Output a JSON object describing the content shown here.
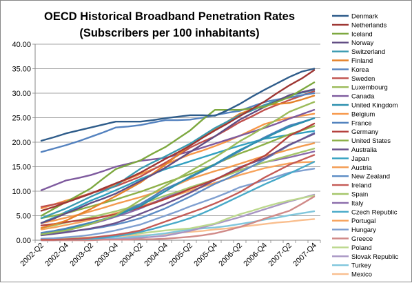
{
  "chart_data": {
    "type": "line",
    "title": "OECD Historical Broadband Penetration Rates",
    "subtitle": "(Subscribers per 100 inhabitants)",
    "xlabel": "",
    "ylabel": "",
    "ylim": [
      0,
      40
    ],
    "ytick_step": 5,
    "ytick_labels": [
      "0.00",
      "5.00",
      "10.00",
      "15.00",
      "20.00",
      "25.00",
      "30.00",
      "35.00",
      "40.00"
    ],
    "x": [
      "2002-Q2",
      "2002-Q3",
      "2002-Q4",
      "2003-Q1",
      "2003-Q2",
      "2003-Q3",
      "2003-Q4",
      "2004-Q1",
      "2004-Q2",
      "2004-Q3",
      "2004-Q4",
      "2005-Q1",
      "2005-Q2",
      "2005-Q3",
      "2005-Q4",
      "2006-Q1",
      "2006-Q2",
      "2006-Q3",
      "2006-Q4",
      "2007-Q1",
      "2007-Q2",
      "2007-Q3",
      "2007-Q4"
    ],
    "xtick_labels": [
      "2002-Q2",
      "2002-Q4",
      "2003-Q2",
      "2003-Q4",
      "2004-Q2",
      "2004-Q4",
      "2005-Q2",
      "2005-Q4",
      "2006-Q2",
      "2006-Q4",
      "2007-Q2",
      "2007-Q4"
    ],
    "grid": true,
    "legend_position": "right",
    "series": [
      {
        "name": "Denmark",
        "color": "#2E5C8A",
        "values": [
          20.3,
          21.0,
          21.8,
          22.4,
          23.0,
          23.6,
          24.2,
          24.2,
          24.2,
          24.5,
          24.9,
          25.2,
          25.5,
          25.5,
          25.4,
          26.5,
          27.8,
          29.3,
          30.7,
          32.0,
          33.3,
          34.4,
          35.0
        ]
      },
      {
        "name": "Netherlands",
        "color": "#9E3633",
        "values": [
          6.0,
          6.8,
          7.7,
          8.6,
          9.5,
          10.6,
          11.6,
          12.6,
          13.8,
          15.2,
          16.6,
          17.9,
          19.3,
          20.9,
          22.4,
          23.8,
          25.3,
          26.8,
          28.3,
          30.0,
          31.6,
          33.0,
          34.7
        ]
      },
      {
        "name": "Iceland",
        "color": "#7DA83F",
        "values": [
          5.0,
          6.4,
          7.8,
          9.2,
          10.6,
          12.6,
          14.5,
          15.4,
          16.3,
          17.7,
          19.0,
          20.7,
          22.4,
          24.6,
          26.6,
          26.6,
          26.6,
          26.9,
          27.2,
          28.2,
          29.2,
          30.7,
          32.2
        ]
      },
      {
        "name": "Norway",
        "color": "#614C83",
        "values": [
          3.5,
          4.4,
          5.5,
          6.5,
          7.6,
          8.5,
          9.5,
          10.8,
          12.1,
          13.4,
          14.8,
          16.4,
          18.0,
          19.6,
          21.2,
          22.9,
          24.6,
          25.9,
          27.2,
          28.4,
          29.6,
          30.2,
          30.8
        ]
      },
      {
        "name": "Switzerland",
        "color": "#3A9AB0",
        "values": [
          4.5,
          5.5,
          6.5,
          7.7,
          8.9,
          10.0,
          11.1,
          12.9,
          14.6,
          15.9,
          17.1,
          18.4,
          19.7,
          21.3,
          22.9,
          24.2,
          25.5,
          26.5,
          27.6,
          28.5,
          29.5,
          30.1,
          30.7
        ]
      },
      {
        "name": "Finland",
        "color": "#E5822A",
        "values": [
          2.5,
          3.2,
          4.0,
          5.2,
          6.4,
          7.7,
          9.0,
          10.4,
          11.8,
          13.6,
          15.4,
          17.4,
          19.4,
          21.0,
          22.6,
          24.2,
          25.8,
          26.7,
          27.6,
          27.8,
          28.0,
          28.7,
          29.5
        ]
      },
      {
        "name": "Korea",
        "color": "#5482BF",
        "values": [
          18.0,
          18.7,
          19.4,
          20.2,
          21.1,
          22.0,
          23.0,
          23.2,
          23.5,
          24.0,
          24.5,
          24.5,
          24.6,
          25.0,
          25.5,
          26.0,
          26.4,
          27.3,
          28.2,
          28.7,
          29.1,
          29.6,
          30.0
        ]
      },
      {
        "name": "Sweden",
        "color": "#C0504D",
        "values": [
          6.8,
          7.3,
          7.8,
          8.7,
          9.6,
          10.3,
          11.0,
          12.0,
          13.0,
          14.4,
          15.8,
          17.3,
          18.9,
          20.1,
          21.2,
          22.6,
          24.1,
          25.3,
          26.6,
          27.6,
          28.6,
          29.5,
          30.4
        ]
      },
      {
        "name": "Luxembourg",
        "color": "#9BBB59",
        "values": [
          1.2,
          1.6,
          2.0,
          2.6,
          3.3,
          4.2,
          5.1,
          6.6,
          8.2,
          9.6,
          11.1,
          12.6,
          14.1,
          15.5,
          16.9,
          18.5,
          20.2,
          21.6,
          23.1,
          24.6,
          26.2,
          27.2,
          28.2
        ]
      },
      {
        "name": "Canada",
        "color": "#7E5A9E",
        "values": [
          10.2,
          11.2,
          12.2,
          12.7,
          13.3,
          14.1,
          15.0,
          15.6,
          16.2,
          16.5,
          16.8,
          17.5,
          18.1,
          18.9,
          19.7,
          20.5,
          21.3,
          22.1,
          22.9,
          23.8,
          24.8,
          25.7,
          26.6
        ]
      },
      {
        "name": "United Kingdom",
        "color": "#2C8FAE",
        "values": [
          1.2,
          1.6,
          2.1,
          2.8,
          3.4,
          4.2,
          5.0,
          6.0,
          7.0,
          8.5,
          10.0,
          11.5,
          13.0,
          14.2,
          15.5,
          17.0,
          18.4,
          19.6,
          20.8,
          22.0,
          23.1,
          24.0,
          24.9
        ]
      },
      {
        "name": "Belgium",
        "color": "#F79646",
        "values": [
          6.5,
          7.3,
          8.1,
          8.8,
          9.6,
          10.5,
          11.4,
          12.5,
          13.5,
          14.5,
          15.5,
          16.5,
          17.5,
          18.3,
          19.2,
          20.2,
          21.3,
          22.5,
          23.7,
          24.4,
          25.0,
          25.4,
          25.8
        ]
      },
      {
        "name": "France",
        "color": "#4F81BD",
        "values": [
          1.5,
          1.9,
          2.4,
          3.0,
          3.6,
          4.3,
          5.0,
          6.2,
          7.4,
          8.9,
          10.5,
          11.6,
          12.8,
          14.1,
          15.4,
          16.8,
          18.2,
          19.6,
          21.0,
          22.2,
          23.4,
          24.1,
          24.9
        ]
      },
      {
        "name": "Germany",
        "color": "#B4413E",
        "values": [
          3.0,
          3.3,
          3.7,
          4.0,
          4.4,
          4.8,
          5.3,
          6.0,
          6.7,
          7.5,
          8.4,
          9.4,
          10.5,
          11.4,
          12.4,
          13.5,
          14.7,
          15.9,
          17.2,
          19.2,
          21.3,
          22.5,
          23.8
        ]
      },
      {
        "name": "United States",
        "color": "#8DB048",
        "values": [
          4.5,
          5.0,
          5.5,
          6.2,
          6.9,
          7.6,
          8.3,
          9.1,
          9.9,
          10.8,
          11.7,
          12.6,
          13.5,
          14.5,
          15.5,
          16.6,
          17.7,
          18.6,
          19.6,
          20.6,
          21.6,
          22.4,
          23.3
        ]
      },
      {
        "name": "Australia",
        "color": "#6B528C",
        "values": [
          1.0,
          1.3,
          1.6,
          2.0,
          2.4,
          2.9,
          3.5,
          4.4,
          5.4,
          6.4,
          7.4,
          8.5,
          9.7,
          11.0,
          12.3,
          13.6,
          14.9,
          15.8,
          16.7,
          18.1,
          19.5,
          20.6,
          21.7
        ]
      },
      {
        "name": "Japan",
        "color": "#31A0C0",
        "values": [
          3.5,
          4.6,
          5.8,
          6.9,
          8.1,
          9.1,
          10.2,
          11.3,
          12.5,
          13.5,
          14.5,
          15.3,
          16.1,
          16.9,
          17.7,
          18.5,
          19.3,
          20.0,
          20.7,
          21.1,
          21.5,
          21.9,
          22.3
        ]
      },
      {
        "name": "Austria",
        "color": "#F39A4E",
        "values": [
          3.5,
          4.0,
          4.6,
          5.2,
          5.9,
          6.6,
          7.4,
          8.1,
          8.8,
          9.6,
          10.4,
          11.4,
          12.5,
          13.3,
          14.1,
          14.8,
          15.6,
          16.4,
          17.2,
          17.8,
          18.5,
          19.2,
          19.8
        ]
      },
      {
        "name": "New Zealand",
        "color": "#5C8CC5",
        "values": [
          1.3,
          1.5,
          1.7,
          2.0,
          2.3,
          2.7,
          3.2,
          3.8,
          4.5,
          5.5,
          6.5,
          7.7,
          8.9,
          10.2,
          11.5,
          12.6,
          13.8,
          15.1,
          16.5,
          17.9,
          19.4,
          20.6,
          21.9
        ]
      },
      {
        "name": "Ireland",
        "color": "#C45A55",
        "values": [
          0.1,
          0.1,
          0.2,
          0.3,
          0.5,
          0.8,
          1.1,
          1.5,
          2.0,
          2.9,
          3.8,
          4.7,
          5.6,
          6.5,
          7.5,
          8.6,
          9.8,
          11.3,
          12.8,
          14.1,
          15.4,
          16.4,
          17.4
        ]
      },
      {
        "name": "Spain",
        "color": "#A5C66A",
        "values": [
          2.5,
          3.0,
          3.6,
          4.1,
          4.7,
          5.3,
          5.9,
          6.6,
          7.4,
          8.2,
          9.1,
          9.9,
          10.8,
          11.6,
          12.4,
          13.3,
          14.2,
          15.1,
          15.9,
          16.6,
          17.3,
          18.0,
          18.7
        ]
      },
      {
        "name": "Italy",
        "color": "#8A6BAA",
        "values": [
          1.0,
          1.5,
          2.0,
          2.6,
          3.3,
          4.0,
          4.8,
          5.6,
          6.5,
          7.6,
          8.7,
          9.6,
          10.6,
          11.5,
          12.4,
          13.3,
          14.3,
          15.1,
          15.9,
          16.4,
          16.9,
          17.5,
          18.1
        ]
      },
      {
        "name": "Czech Republic",
        "color": "#47A9C8",
        "values": [
          0.1,
          0.1,
          0.2,
          0.2,
          0.3,
          0.5,
          0.8,
          1.2,
          1.7,
          2.3,
          3.0,
          3.7,
          4.5,
          5.5,
          6.6,
          7.8,
          9.0,
          10.2,
          11.4,
          12.5,
          13.6,
          14.8,
          16.0
        ]
      },
      {
        "name": "Portugal",
        "color": "#F7A35C",
        "values": [
          2.2,
          2.6,
          3.1,
          3.6,
          4.2,
          4.8,
          5.5,
          6.2,
          6.9,
          7.7,
          8.5,
          9.3,
          10.1,
          10.9,
          11.7,
          12.5,
          13.3,
          14.0,
          14.7,
          15.2,
          15.7,
          15.9,
          16.0
        ]
      },
      {
        "name": "Hungary",
        "color": "#7F9FD0",
        "values": [
          0.3,
          0.4,
          0.6,
          0.8,
          1.1,
          1.5,
          2.0,
          2.6,
          3.2,
          4.1,
          5.0,
          5.9,
          6.9,
          7.8,
          8.7,
          9.7,
          10.8,
          11.5,
          12.2,
          13.0,
          13.8,
          14.2,
          14.6
        ]
      },
      {
        "name": "Greece",
        "color": "#D08A88",
        "values": [
          0.0,
          0.0,
          0.0,
          0.0,
          0.0,
          0.1,
          0.1,
          0.1,
          0.2,
          0.2,
          0.3,
          0.5,
          0.7,
          1.0,
          1.4,
          2.0,
          2.7,
          3.5,
          4.4,
          5.2,
          6.0,
          7.4,
          8.9
        ]
      },
      {
        "name": "Poland",
        "color": "#BCD88D",
        "values": [
          0.1,
          0.2,
          0.3,
          0.4,
          0.5,
          0.7,
          0.9,
          1.1,
          1.4,
          1.7,
          2.0,
          2.2,
          2.4,
          2.9,
          3.4,
          4.4,
          5.3,
          6.0,
          6.8,
          7.5,
          8.1,
          8.6,
          9.1
        ]
      },
      {
        "name": "Slovak Republic",
        "color": "#A896C4",
        "values": [
          0.0,
          0.0,
          0.1,
          0.1,
          0.1,
          0.2,
          0.2,
          0.3,
          0.5,
          0.7,
          0.9,
          1.4,
          1.9,
          2.6,
          3.3,
          4.0,
          4.7,
          5.5,
          6.3,
          7.1,
          7.9,
          8.6,
          9.3
        ]
      },
      {
        "name": "Turkey",
        "color": "#7FC6DC",
        "values": [
          0.0,
          0.0,
          0.1,
          0.1,
          0.2,
          0.3,
          0.4,
          0.6,
          0.8,
          1.1,
          1.4,
          1.8,
          2.2,
          2.4,
          2.6,
          2.9,
          3.3,
          3.7,
          4.2,
          4.6,
          5.1,
          5.5,
          5.9
        ]
      },
      {
        "name": "Mexico",
        "color": "#F9BE8E",
        "values": [
          0.2,
          0.3,
          0.4,
          0.5,
          0.6,
          0.7,
          0.8,
          0.9,
          1.0,
          1.1,
          1.3,
          1.5,
          1.7,
          1.9,
          2.2,
          2.4,
          2.7,
          3.0,
          3.3,
          3.6,
          3.8,
          4.1,
          4.3
        ]
      }
    ]
  }
}
